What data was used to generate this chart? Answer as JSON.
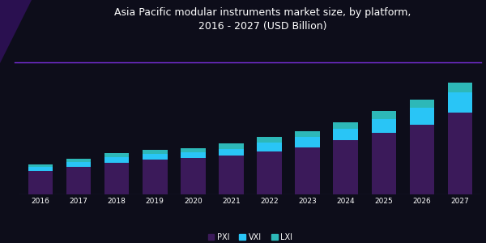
{
  "title": "Asia Pacific modular instruments market size, by platform,\n2016 - 2027 (USD Billion)",
  "years": [
    "2016",
    "2017",
    "2018",
    "2019",
    "2020",
    "2021",
    "2022",
    "2023",
    "2024",
    "2025",
    "2026",
    "2027"
  ],
  "series1": [
    0.28,
    0.33,
    0.38,
    0.42,
    0.44,
    0.47,
    0.52,
    0.57,
    0.65,
    0.74,
    0.84,
    0.98
  ],
  "series2": [
    0.05,
    0.06,
    0.07,
    0.07,
    0.07,
    0.08,
    0.1,
    0.12,
    0.14,
    0.17,
    0.2,
    0.25
  ],
  "series3": [
    0.03,
    0.04,
    0.05,
    0.05,
    0.05,
    0.06,
    0.07,
    0.07,
    0.08,
    0.09,
    0.1,
    0.12
  ],
  "color1": "#3b1a5a",
  "color2": "#29c5f6",
  "color3": "#2db8b8",
  "background_color": "#0d0d1a",
  "title_color": "#ffffff",
  "title_fontsize": 9,
  "bar_width": 0.65,
  "legend_labels": [
    "PXI",
    "VXI",
    "LXI"
  ],
  "accent_line_color": "#7b2fe0",
  "axis_line_color": "#444466"
}
